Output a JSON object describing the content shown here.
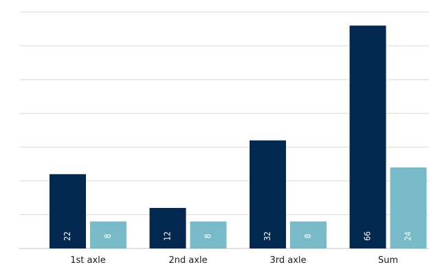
{
  "chart_data": {
    "type": "bar",
    "categories": [
      "1st axle",
      "2nd axle",
      "3rd axle",
      "Sum"
    ],
    "series": [
      {
        "values": [
          22,
          12,
          32,
          66
        ],
        "color": "#03284f"
      },
      {
        "values": [
          8,
          8,
          8,
          24
        ],
        "color": "#79bac8"
      }
    ],
    "ylim": [
      0,
      70
    ],
    "grid": true,
    "y_tick_step": 10,
    "show_y_tick_labels": false,
    "data_labels": "rotated-inside-bottom"
  }
}
